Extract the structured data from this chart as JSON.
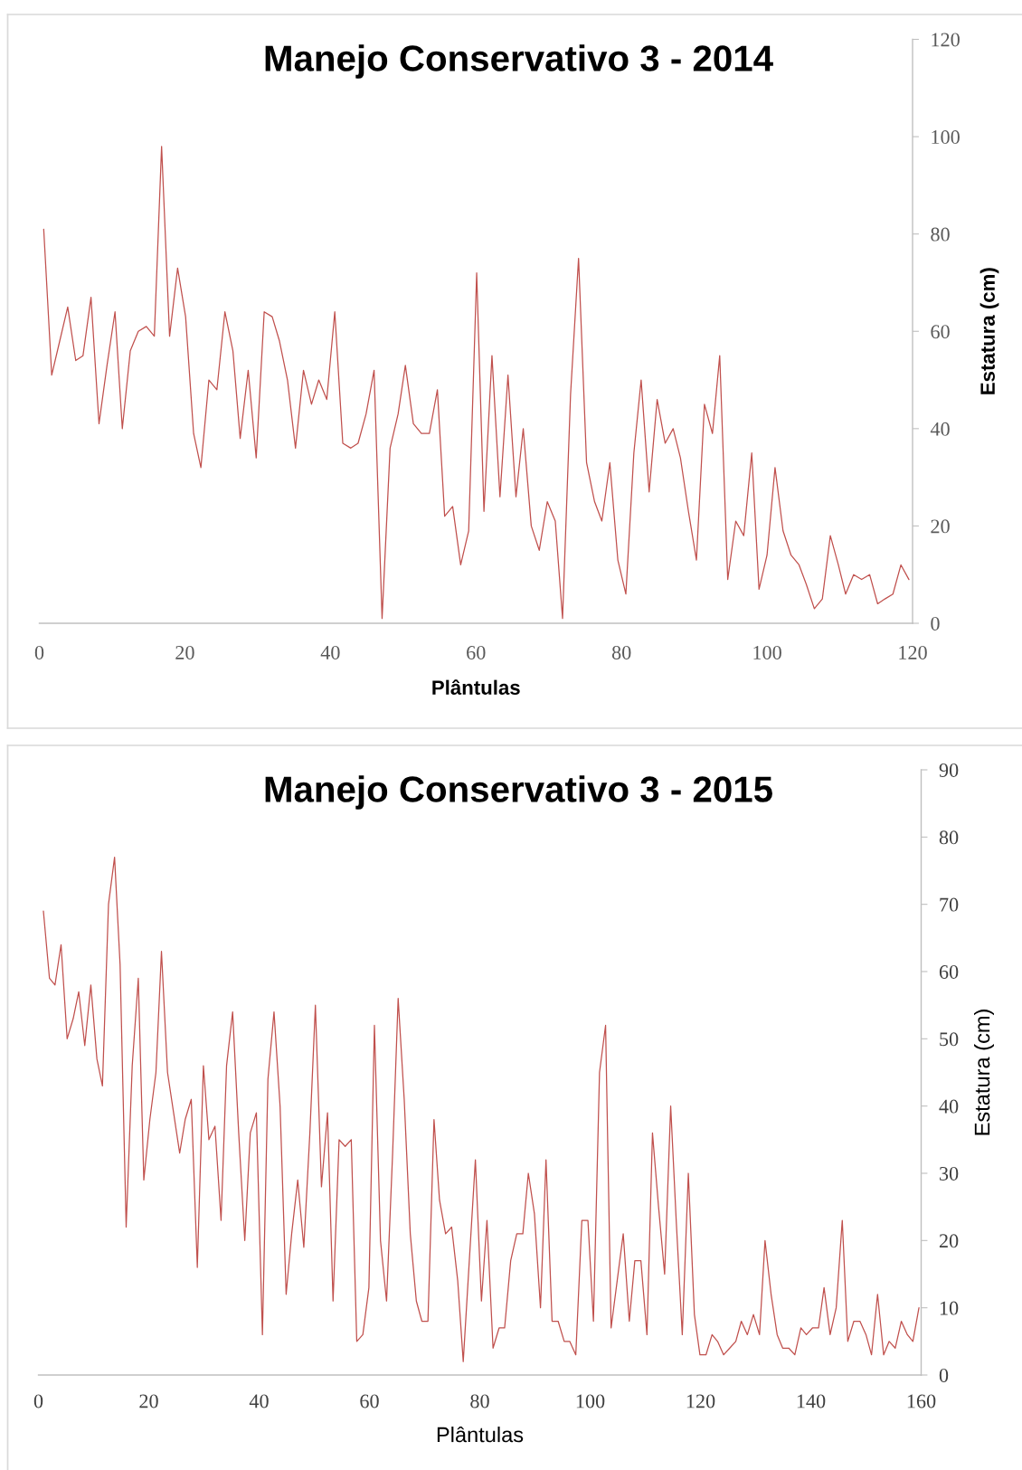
{
  "chart_data": [
    {
      "type": "line",
      "title": "Manejo Conservativo 3 - 2014",
      "xlabel": "Plântulas",
      "ylabel": "Estatura (cm)",
      "x": [
        0.6,
        1.7,
        2.8,
        3.9,
        5.0,
        6.0,
        7.1,
        8.2,
        9.3,
        10.4,
        11.4,
        12.5,
        13.6,
        14.7,
        15.8,
        16.8,
        17.9,
        19.0,
        20.1,
        21.2,
        22.2,
        23.3,
        24.4,
        25.5,
        26.6,
        27.6,
        28.7,
        29.8,
        30.9,
        32.0,
        33.0,
        34.1,
        35.2,
        36.3,
        37.4,
        38.4,
        39.5,
        40.6,
        41.7,
        42.8,
        43.8,
        44.9,
        46.0,
        47.1,
        48.2,
        49.3,
        50.3,
        51.4,
        52.5,
        53.6,
        54.7,
        55.7,
        56.8,
        57.9,
        59.0,
        60.1,
        61.1,
        62.2,
        63.3,
        64.4,
        65.5,
        66.5,
        67.6,
        68.7,
        69.8,
        70.9,
        71.9,
        73.0,
        74.1,
        75.2,
        76.3,
        77.3,
        78.4,
        79.5,
        80.6,
        81.7,
        82.7,
        83.8,
        84.9,
        86.0,
        87.1,
        88.1,
        89.2,
        90.3,
        91.4,
        92.5,
        93.5,
        94.6,
        95.7,
        96.8,
        97.9,
        98.9,
        100.0,
        101.1,
        102.2,
        103.3,
        104.4,
        105.4,
        106.5,
        107.6,
        108.7,
        109.8,
        110.8,
        111.9,
        113.0,
        114.1,
        115.2,
        116.2,
        117.3,
        118.4,
        119.5
      ],
      "series": [
        {
          "color": "#c0504d",
          "values": [
            81,
            51,
            58,
            65,
            54,
            55,
            67,
            41,
            53,
            64,
            40,
            56,
            60,
            61,
            59,
            98,
            59,
            73,
            63,
            39,
            32,
            50,
            48,
            64,
            56,
            38,
            52,
            34,
            64,
            63,
            58,
            50,
            36,
            52,
            45,
            50,
            46,
            64,
            37,
            36,
            37,
            43,
            52,
            1,
            36,
            43,
            53,
            41,
            39,
            39,
            48,
            22,
            24,
            12,
            19,
            72,
            23,
            55,
            26,
            51,
            26,
            40,
            20,
            15,
            25,
            21,
            1,
            47,
            75,
            33,
            25,
            21,
            33,
            13,
            6,
            35,
            50,
            27,
            46,
            37,
            40,
            34,
            23,
            13,
            45,
            39,
            55,
            9,
            21,
            18,
            35,
            7,
            14,
            32,
            19,
            14,
            12,
            8,
            3,
            5,
            18,
            12,
            6,
            10,
            9,
            10,
            4,
            5,
            6,
            12,
            9
          ]
        }
      ],
      "xlim": [
        0,
        120
      ],
      "xticks": [
        0,
        20,
        40,
        60,
        80,
        100,
        120
      ],
      "ylim": [
        0,
        120
      ],
      "yticks": [
        0,
        20,
        40,
        60,
        80,
        100,
        120
      ],
      "grid": false,
      "marker": "none",
      "line_style": "solid"
    },
    {
      "type": "line",
      "title": "Manejo Conservativo 3 - 2015",
      "xlabel": "Plântulas",
      "ylabel": "Estatura (cm)",
      "x": [
        0.9,
        2.0,
        3.0,
        4.1,
        5.2,
        6.3,
        7.3,
        8.4,
        9.5,
        10.6,
        11.6,
        12.7,
        13.8,
        14.8,
        15.9,
        17.0,
        18.1,
        19.1,
        20.2,
        21.3,
        22.3,
        23.4,
        24.5,
        25.6,
        26.6,
        27.7,
        28.8,
        29.9,
        30.9,
        32.0,
        33.1,
        34.1,
        35.2,
        36.3,
        37.4,
        38.4,
        39.5,
        40.6,
        41.6,
        42.7,
        43.8,
        44.9,
        45.9,
        47.0,
        48.1,
        49.2,
        50.2,
        51.3,
        52.4,
        53.4,
        54.5,
        55.6,
        56.7,
        57.7,
        58.8,
        59.9,
        60.9,
        62.0,
        63.1,
        64.2,
        65.2,
        66.3,
        67.4,
        68.5,
        69.5,
        70.6,
        71.7,
        72.7,
        73.8,
        74.9,
        76.0,
        77.0,
        78.1,
        79.2,
        80.3,
        81.3,
        82.4,
        83.5,
        84.5,
        85.6,
        86.7,
        87.8,
        88.8,
        89.9,
        91.0,
        92.0,
        93.1,
        94.2,
        95.3,
        96.3,
        97.4,
        98.5,
        99.6,
        100.6,
        101.7,
        102.8,
        103.8,
        104.9,
        106.0,
        107.1,
        108.1,
        109.2,
        110.3,
        111.3,
        112.4,
        113.5,
        114.6,
        115.6,
        116.7,
        117.8,
        118.9,
        119.9,
        121.0,
        122.1,
        123.1,
        124.2,
        125.3,
        126.4,
        127.4,
        128.5,
        129.6,
        130.7,
        131.7,
        132.8,
        133.9,
        134.9,
        136.0,
        137.1,
        138.2,
        139.2,
        140.3,
        141.4,
        142.4,
        143.5,
        144.6,
        145.7,
        146.7,
        147.8,
        148.9,
        150.0,
        151.0,
        152.1,
        153.2,
        154.2,
        155.3,
        156.4,
        157.5,
        158.5,
        159.6
      ],
      "series": [
        {
          "color": "#c0504d",
          "values": [
            69,
            59,
            58,
            64,
            50,
            53,
            57,
            49,
            58,
            47,
            43,
            70,
            77,
            61,
            22,
            46,
            59,
            29,
            38,
            45,
            63,
            45,
            39,
            33,
            38,
            41,
            16,
            46,
            35,
            37,
            23,
            46,
            54,
            36,
            20,
            36,
            39,
            6,
            44,
            54,
            40,
            12,
            21,
            29,
            19,
            36,
            55,
            28,
            39,
            11,
            35,
            34,
            35,
            5,
            6,
            13,
            52,
            20,
            11,
            33,
            56,
            41,
            21,
            11,
            8,
            8,
            38,
            26,
            21,
            22,
            14,
            2,
            17,
            32,
            11,
            23,
            4,
            7,
            7,
            17,
            21,
            21,
            30,
            24,
            10,
            32,
            8,
            8,
            5,
            5,
            3,
            23,
            23,
            8,
            45,
            52,
            7,
            14,
            21,
            8,
            17,
            17,
            6,
            36,
            25,
            15,
            40,
            23,
            6,
            30,
            9,
            3,
            3,
            6,
            5,
            3,
            4,
            5,
            8,
            6,
            9,
            6,
            20,
            12,
            6,
            4,
            4,
            3,
            7,
            6,
            7,
            7,
            13,
            6,
            10,
            23,
            5,
            8,
            8,
            6,
            3,
            12,
            3,
            5,
            4,
            8,
            6,
            5,
            10
          ]
        }
      ],
      "xlim": [
        0,
        160
      ],
      "xticks": [
        0,
        20,
        40,
        60,
        80,
        100,
        120,
        140,
        160
      ],
      "ylim": [
        0,
        90
      ],
      "yticks": [
        0,
        10,
        20,
        30,
        40,
        50,
        60,
        70,
        80,
        90
      ],
      "grid": false,
      "marker": "none",
      "line_style": "solid"
    }
  ]
}
